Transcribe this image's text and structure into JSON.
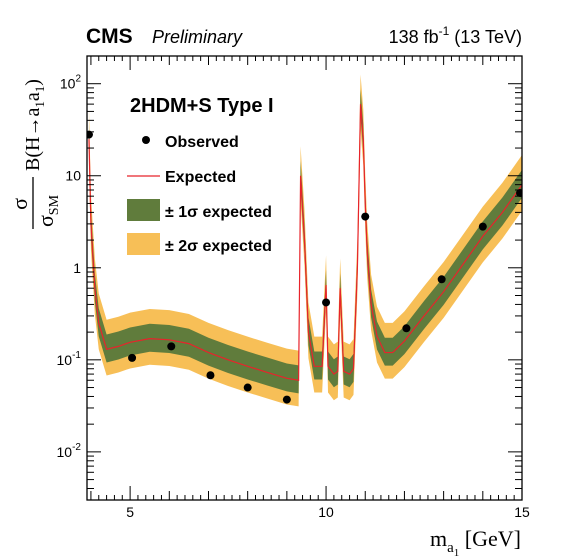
{
  "header": {
    "experiment": "CMS",
    "status": "Preliminary",
    "lumi_prefix": "138 fb",
    "lumi_exp": "-1",
    "lumi_suffix": " (13 TeV)"
  },
  "axes": {
    "x_symbol": "m",
    "x_sub": "a",
    "x_subsub": "1",
    "x_unit": " [GeV]",
    "y_sigma": "σ",
    "y_sigma_sm_sub": "SM",
    "y_br": "B(H→a",
    "y_br_sub1": "1",
    "y_br_mid": "a",
    "y_br_sub2": "1",
    "y_br_close": ")"
  },
  "legend": {
    "title": "2HDM+S Type I",
    "observed": "Observed",
    "expected": "Expected",
    "band1": "± 1σ expected",
    "band2": "± 2σ expected"
  },
  "colors": {
    "expected_line": "#e8232b",
    "band_1sigma": "#607c3c",
    "band_2sigma": "#f7bf57",
    "observed": "#000000"
  },
  "chart_data": {
    "type": "line",
    "xlabel": "m_a1 [GeV]",
    "ylabel": "σ/σ_SM B(H→a1a1)",
    "xlim": [
      3.9,
      15.0
    ],
    "ylim": [
      0.003,
      200
    ],
    "yscale": "log",
    "x_ticks": [
      5,
      10,
      15
    ],
    "y_ticks": [
      {
        "value": 0.01,
        "base": "10",
        "exp": "-2"
      },
      {
        "value": 0.1,
        "base": "10",
        "exp": "-1"
      },
      {
        "value": 1,
        "base": "1",
        "exp": ""
      },
      {
        "value": 10,
        "base": "10",
        "exp": ""
      },
      {
        "value": 100,
        "base": "10",
        "exp": "2"
      }
    ],
    "legend_position": "top-left",
    "grid": false,
    "series": [
      {
        "name": "Observed",
        "style": "markers",
        "x": [
          3.95,
          5.05,
          6.05,
          7.05,
          8.0,
          9.0,
          10.0,
          11.0,
          12.05,
          12.95,
          14.0,
          14.95
        ],
        "y": [
          28,
          0.105,
          0.14,
          0.068,
          0.05,
          0.037,
          0.42,
          3.6,
          0.22,
          0.75,
          2.8,
          6.5
        ]
      },
      {
        "name": "Expected",
        "style": "line",
        "x": [
          3.95,
          4.0,
          4.1,
          4.2,
          4.4,
          4.7,
          5.0,
          5.5,
          6.0,
          6.5,
          7.0,
          7.5,
          8.0,
          8.5,
          9.0,
          9.3,
          9.35,
          9.45,
          9.55,
          9.7,
          9.9,
          10.0,
          10.05,
          10.2,
          10.3,
          10.36,
          10.45,
          10.6,
          10.7,
          10.8,
          10.88,
          10.95,
          11.0,
          11.05,
          11.15,
          11.3,
          11.5,
          11.7,
          12.0,
          12.5,
          13.0,
          13.5,
          14.0,
          14.5,
          15.0
        ],
        "y": [
          25,
          3.0,
          0.6,
          0.25,
          0.13,
          0.14,
          0.155,
          0.17,
          0.165,
          0.15,
          0.12,
          0.1,
          0.085,
          0.073,
          0.063,
          0.06,
          10.0,
          2.0,
          0.2,
          0.085,
          0.085,
          0.65,
          0.085,
          0.07,
          0.075,
          0.6,
          0.075,
          0.07,
          0.08,
          1.0,
          60,
          25,
          5.0,
          1.5,
          0.4,
          0.18,
          0.12,
          0.12,
          0.16,
          0.3,
          0.55,
          1.1,
          2.2,
          4.0,
          8.0
        ]
      },
      {
        "name": "± 1σ expected",
        "style": "band",
        "lo_factor": 0.72,
        "hi_factor": 1.45
      },
      {
        "name": "± 2σ expected",
        "style": "band",
        "lo_factor": 0.52,
        "hi_factor": 2.1
      }
    ]
  }
}
